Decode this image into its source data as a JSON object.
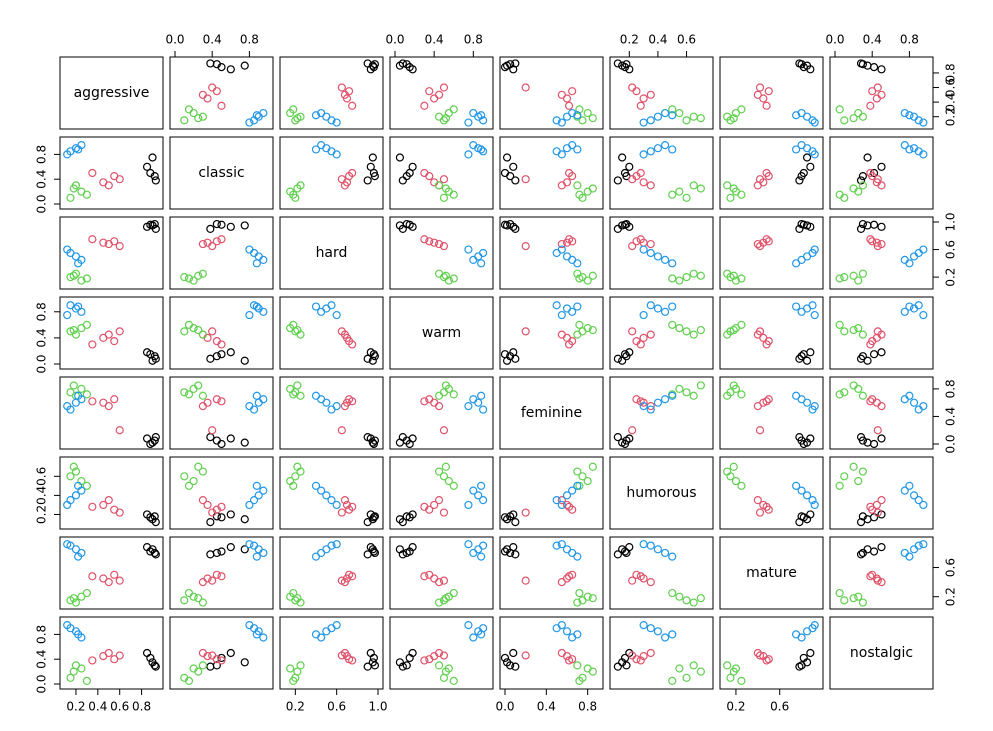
{
  "chart_data": {
    "type": "pairs",
    "variables": [
      {
        "name": "aggressive",
        "lim": [
          0.1,
          0.95
        ],
        "ticks": [
          0.2,
          0.4,
          0.6,
          0.8
        ]
      },
      {
        "name": "classic",
        "lim": [
          0,
          1
        ],
        "ticks": [
          {
            "value": 0,
            "label": "0.0"
          },
          0.4,
          0.8
        ]
      },
      {
        "name": "hard",
        "lim": [
          0.1,
          1
        ],
        "ticks": [
          0.2,
          0.6,
          {
            "value": 1,
            "label": "1.0"
          }
        ]
      },
      {
        "name": "warm",
        "lim": [
          0,
          0.95
        ],
        "ticks": [
          {
            "value": 0,
            "label": "0.0"
          },
          0.4,
          0.8
        ]
      },
      {
        "name": "feminine",
        "lim": [
          0,
          0.9
        ],
        "ticks": [
          {
            "value": 0,
            "label": "0.0"
          },
          0.4,
          0.8
        ]
      },
      {
        "name": "humorous",
        "lim": [
          0.1,
          0.75
        ],
        "ticks": [
          0.2,
          0.4,
          0.6
        ]
      },
      {
        "name": "mature",
        "lim": [
          0.1,
          0.95
        ],
        "ticks": [
          0.2,
          0.6
        ]
      },
      {
        "name": "nostalgic",
        "lim": [
          0,
          1
        ],
        "ticks": [
          {
            "value": 0,
            "label": "0.0"
          },
          0.4,
          0.8
        ]
      }
    ],
    "observations": [
      {
        "color": "#000000",
        "values": [
          0.9,
          0.75,
          0.95,
          0.05,
          0.02,
          0.15,
          0.85,
          0.35
        ]
      },
      {
        "color": "#000000",
        "values": [
          0.92,
          0.45,
          0.97,
          0.12,
          0.05,
          0.18,
          0.8,
          0.3
        ]
      },
      {
        "color": "#000000",
        "values": [
          0.85,
          0.6,
          0.93,
          0.18,
          0.08,
          0.2,
          0.88,
          0.5
        ]
      },
      {
        "color": "#000000",
        "values": [
          0.93,
          0.38,
          0.9,
          0.08,
          0.1,
          0.12,
          0.78,
          0.28
        ]
      },
      {
        "color": "#000000",
        "values": [
          0.88,
          0.5,
          0.96,
          0.15,
          0.0,
          0.17,
          0.82,
          0.42
        ]
      },
      {
        "color": "#df536b",
        "values": [
          0.45,
          0.35,
          0.7,
          0.4,
          0.6,
          0.3,
          0.45,
          0.45
        ]
      },
      {
        "color": "#df536b",
        "values": [
          0.55,
          0.45,
          0.72,
          0.35,
          0.65,
          0.25,
          0.5,
          0.4
        ]
      },
      {
        "color": "#df536b",
        "values": [
          0.5,
          0.3,
          0.68,
          0.45,
          0.55,
          0.35,
          0.4,
          0.5
        ]
      },
      {
        "color": "#df536b",
        "values": [
          0.35,
          0.5,
          0.75,
          0.3,
          0.62,
          0.28,
          0.48,
          0.38
        ]
      },
      {
        "color": "#df536b",
        "values": [
          0.6,
          0.4,
          0.65,
          0.5,
          0.2,
          0.22,
          0.42,
          0.46
        ]
      },
      {
        "color": "#61d04f",
        "values": [
          0.15,
          0.1,
          0.2,
          0.5,
          0.75,
          0.6,
          0.15,
          0.1
        ]
      },
      {
        "color": "#61d04f",
        "values": [
          0.25,
          0.2,
          0.15,
          0.55,
          0.8,
          0.55,
          0.2,
          0.25
        ]
      },
      {
        "color": "#61d04f",
        "values": [
          0.2,
          0.3,
          0.25,
          0.45,
          0.7,
          0.65,
          0.12,
          0.3
        ]
      },
      {
        "color": "#61d04f",
        "values": [
          0.3,
          0.15,
          0.18,
          0.6,
          0.72,
          0.5,
          0.25,
          0.05
        ]
      },
      {
        "color": "#61d04f",
        "values": [
          0.18,
          0.25,
          0.22,
          0.52,
          0.85,
          0.7,
          0.18,
          0.2
        ]
      },
      {
        "color": "#2297e6",
        "values": [
          0.2,
          0.9,
          0.5,
          0.85,
          0.6,
          0.4,
          0.85,
          0.85
        ]
      },
      {
        "color": "#2297e6",
        "values": [
          0.15,
          0.85,
          0.55,
          0.9,
          0.5,
          0.35,
          0.9,
          0.9
        ]
      },
      {
        "color": "#2297e6",
        "values": [
          0.25,
          0.95,
          0.45,
          0.8,
          0.65,
          0.45,
          0.8,
          0.75
        ]
      },
      {
        "color": "#2297e6",
        "values": [
          0.12,
          0.8,
          0.6,
          0.75,
          0.55,
          0.3,
          0.92,
          0.95
        ]
      },
      {
        "color": "#2297e6",
        "values": [
          0.22,
          0.88,
          0.4,
          0.88,
          0.7,
          0.5,
          0.75,
          0.8
        ]
      }
    ]
  }
}
